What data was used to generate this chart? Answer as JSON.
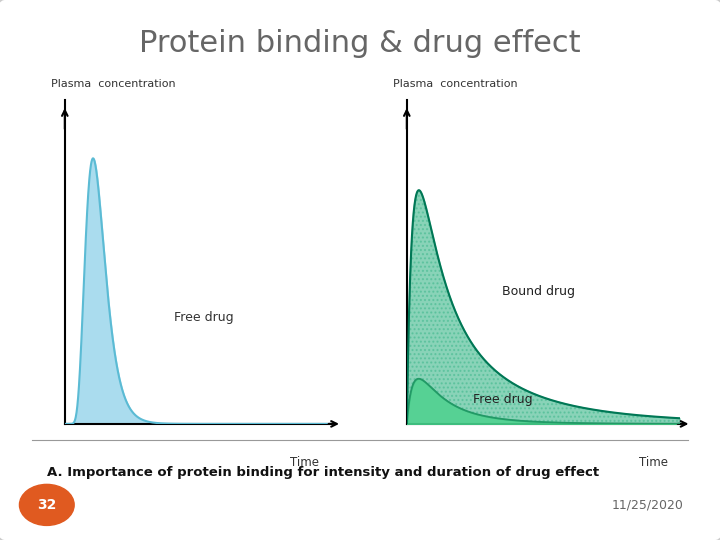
{
  "title": "Protein binding & drug effect",
  "title_color": "#666666",
  "title_fontsize": 22,
  "bg_color": "#ffffff",
  "border_color": "#cccccc",
  "left_ylabel": "Plasma  concentration",
  "right_ylabel": "Plasma  concentration",
  "xlabel": "Time",
  "left_label": "Free drug",
  "right_label_bound": "Bound drug",
  "right_label_free": "Free drug",
  "free_drug_fill": "#aadcee",
  "free_drug_line": "#5bbbd4",
  "bound_fill_color": "#1aaa77",
  "free_right_fill": "#44cc88",
  "free_right_line": "#229966",
  "total_line_color": "#007755",
  "caption": "A. Importance of protein binding for intensity and duration of drug effect",
  "caption_fontsize": 9.5,
  "page_number": "32",
  "page_number_bg": "#e05a20",
  "date": "11/25/2020"
}
